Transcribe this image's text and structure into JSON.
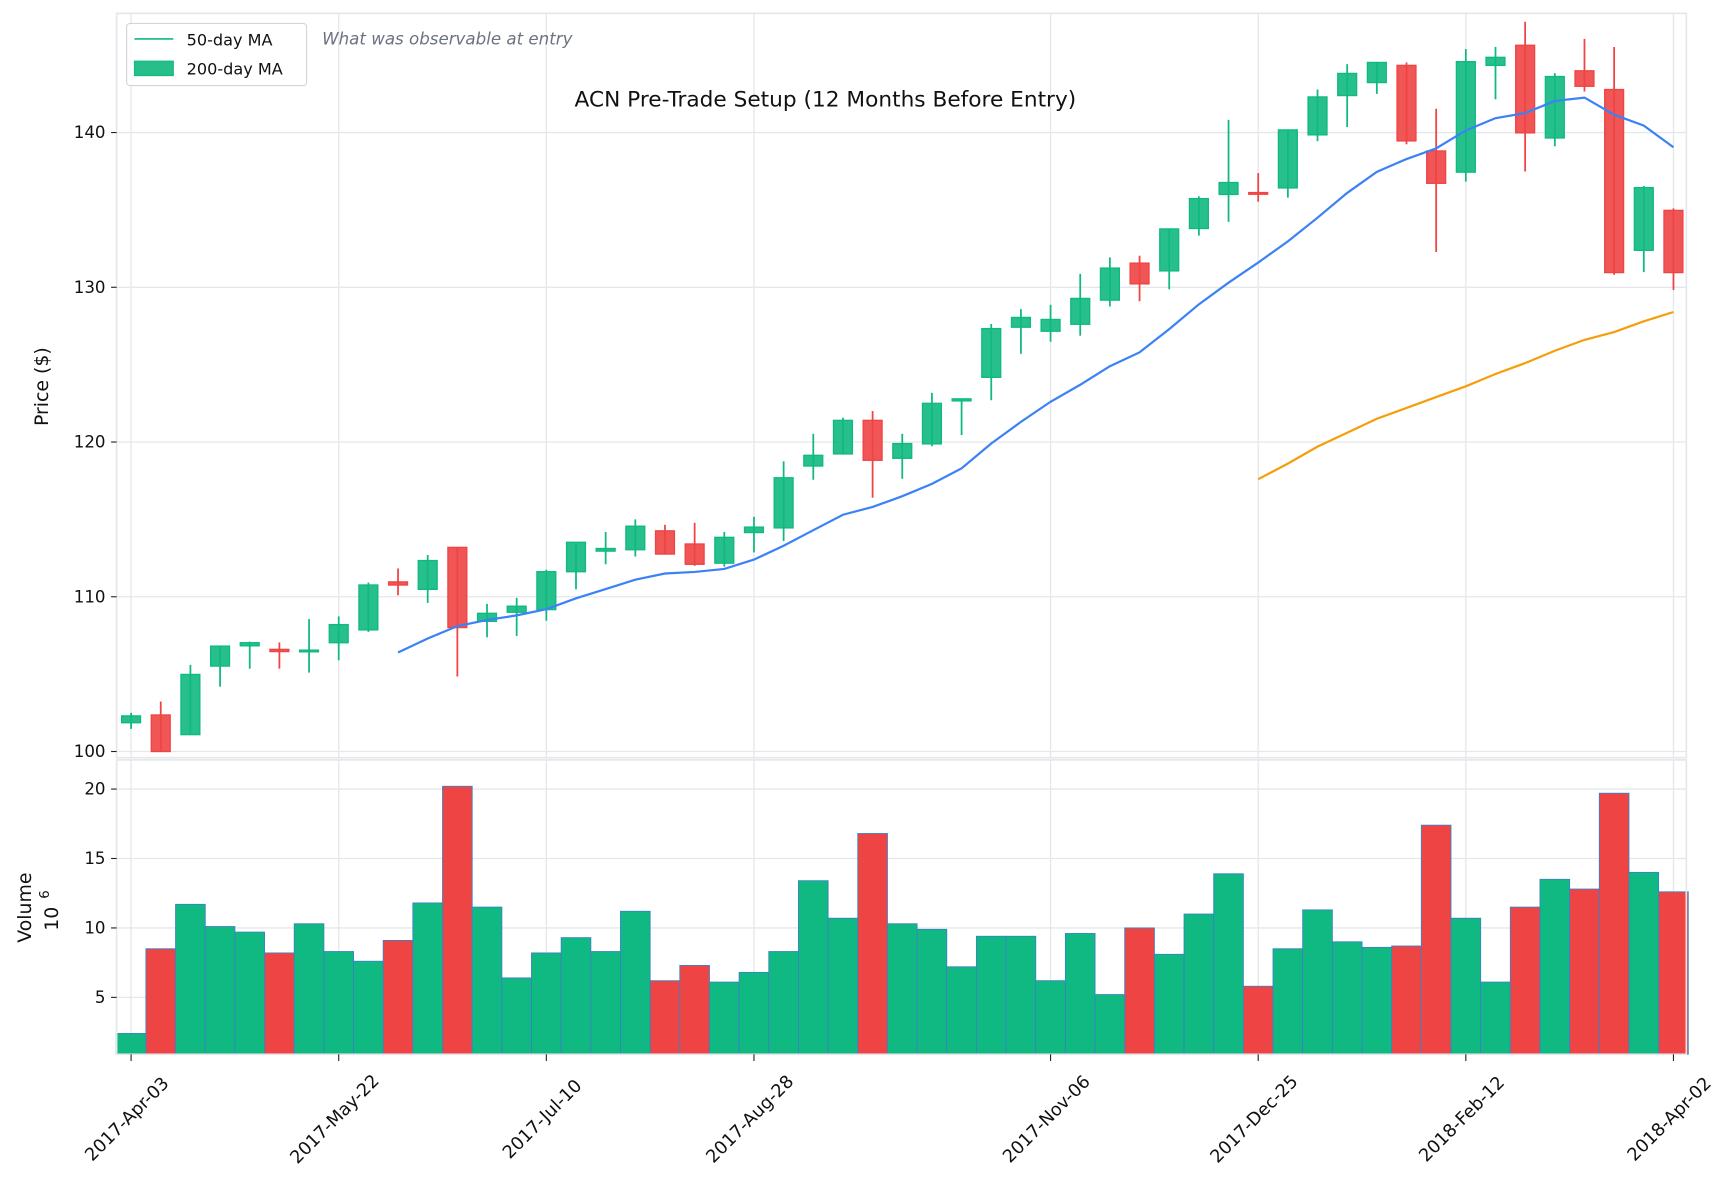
{
  "chart_data": [
    {
      "type": "candlestick",
      "title": "ACN Pre-Trade Setup (12 Months Before Entry)",
      "annotation": "What was observable at entry",
      "ylabel": "Price ($)",
      "ylim": [
        99.6,
        147.7
      ],
      "yticks": [
        100,
        110,
        120,
        130,
        140
      ],
      "grid": true,
      "legend": {
        "placement": "top-left",
        "entries": [
          "50-day MA",
          "200-day MA"
        ]
      },
      "colors": {
        "up": "#10b981",
        "down": "#ef4444",
        "ma50": "#3b82f6",
        "ma200": "#f59e0b",
        "grid": "#e5e7eb"
      },
      "ohlc": [
        [
          101.86,
          102.5,
          101.46,
          102.3
        ],
        [
          102.36,
          103.23,
          100.0,
          100.0
        ],
        [
          101.09,
          105.6,
          101.09,
          104.98
        ],
        [
          105.52,
          106.81,
          104.19,
          106.81
        ],
        [
          106.83,
          107.1,
          105.35,
          107.03
        ],
        [
          106.6,
          107.05,
          105.35,
          106.46
        ],
        [
          106.46,
          108.56,
          105.1,
          106.55
        ],
        [
          107.03,
          108.73,
          105.9,
          108.2
        ],
        [
          107.86,
          110.92,
          107.73,
          110.76
        ],
        [
          110.96,
          111.83,
          110.09,
          110.76
        ],
        [
          110.48,
          112.7,
          109.6,
          112.34
        ],
        [
          113.19,
          113.19,
          104.85,
          108.01
        ],
        [
          108.41,
          109.54,
          107.38,
          108.93
        ],
        [
          109.0,
          109.93,
          107.47,
          109.39
        ],
        [
          109.17,
          111.75,
          108.45,
          111.62
        ],
        [
          111.62,
          113.52,
          110.48,
          113.52
        ],
        [
          112.95,
          114.19,
          112.1,
          113.12
        ],
        [
          113.04,
          115.0,
          112.6,
          114.56
        ],
        [
          114.26,
          114.65,
          112.76,
          112.76
        ],
        [
          113.41,
          114.78,
          112.0,
          112.1
        ],
        [
          112.17,
          114.19,
          111.95,
          113.84
        ],
        [
          114.15,
          115.17,
          112.87,
          114.5
        ],
        [
          114.45,
          118.75,
          113.6,
          117.69
        ],
        [
          118.45,
          120.53,
          117.56,
          119.14
        ],
        [
          119.23,
          121.57,
          119.23,
          121.4
        ],
        [
          121.4,
          122.0,
          116.4,
          118.82
        ],
        [
          118.95,
          120.53,
          117.62,
          119.9
        ],
        [
          119.88,
          123.18,
          119.73,
          122.5
        ],
        [
          122.66,
          122.79,
          120.45,
          122.79
        ],
        [
          124.18,
          127.63,
          122.7,
          127.33
        ],
        [
          127.42,
          128.59,
          125.7,
          128.05
        ],
        [
          127.16,
          128.87,
          126.48,
          127.92
        ],
        [
          127.61,
          130.87,
          126.87,
          129.28
        ],
        [
          129.17,
          131.93,
          128.76,
          131.24
        ],
        [
          131.56,
          132.04,
          129.1,
          130.22
        ],
        [
          131.06,
          133.77,
          129.87,
          133.77
        ],
        [
          133.8,
          135.88,
          133.34,
          135.73
        ],
        [
          136.0,
          140.82,
          134.23,
          136.77
        ],
        [
          136.12,
          137.38,
          135.53,
          136.03
        ],
        [
          136.42,
          140.17,
          135.79,
          140.17
        ],
        [
          139.85,
          142.78,
          139.44,
          142.3
        ],
        [
          142.39,
          144.42,
          140.35,
          143.82
        ],
        [
          143.23,
          144.53,
          142.5,
          144.53
        ],
        [
          144.34,
          144.53,
          139.24,
          139.46
        ],
        [
          138.81,
          141.54,
          132.28,
          136.72
        ],
        [
          137.44,
          145.4,
          136.83,
          144.58
        ],
        [
          144.34,
          145.53,
          142.15,
          144.86
        ],
        [
          145.64,
          147.16,
          137.48,
          139.98
        ],
        [
          139.65,
          143.84,
          139.11,
          143.62
        ],
        [
          143.99,
          146.05,
          142.65,
          142.99
        ],
        [
          142.78,
          145.53,
          130.8,
          130.95
        ],
        [
          132.39,
          136.55,
          130.98,
          136.44
        ],
        [
          134.97,
          135.1,
          129.83,
          130.95
        ]
      ],
      "ma50": [
        null,
        null,
        null,
        null,
        null,
        null,
        null,
        null,
        null,
        106.4,
        107.3,
        108.1,
        108.5,
        108.8,
        109.2,
        109.9,
        110.5,
        111.1,
        111.5,
        111.6,
        111.8,
        112.4,
        113.3,
        114.3,
        115.3,
        115.8,
        116.5,
        117.3,
        118.3,
        119.9,
        121.3,
        122.6,
        123.7,
        124.9,
        125.8,
        127.3,
        128.9,
        130.3,
        131.6,
        132.97,
        134.5,
        136.1,
        137.46,
        138.29,
        138.98,
        140.13,
        140.93,
        141.26,
        142.04,
        142.26,
        141.15,
        140.45,
        139.05
      ],
      "ma200": [
        null,
        null,
        null,
        null,
        null,
        null,
        null,
        null,
        null,
        null,
        null,
        null,
        null,
        null,
        null,
        null,
        null,
        null,
        null,
        null,
        null,
        null,
        null,
        null,
        null,
        null,
        null,
        null,
        null,
        null,
        null,
        null,
        null,
        null,
        null,
        null,
        null,
        null,
        117.6,
        118.6,
        119.7,
        120.6,
        121.5,
        122.2,
        122.9,
        123.6,
        124.4,
        125.1,
        125.9,
        126.6,
        127.1,
        127.8,
        128.4
      ],
      "xticks": [
        {
          "index": 0,
          "label": "2017-Apr-03"
        },
        {
          "index": 7,
          "label": "2017-May-22"
        },
        {
          "index": 14,
          "label": "2017-Jul-10"
        },
        {
          "index": 21,
          "label": "2017-Aug-28"
        },
        {
          "index": 31,
          "label": "2017-Nov-06"
        },
        {
          "index": 38,
          "label": "2017-Dec-25"
        },
        {
          "index": 45,
          "label": "2018-Feb-12"
        },
        {
          "index": 52,
          "label": "2018-Apr-02"
        }
      ]
    },
    {
      "type": "bar",
      "ylabel": "Volume",
      "offset_text": "10",
      "offset_exp": "6",
      "ylim": [
        0.9,
        22.1
      ],
      "yticks": [
        5,
        10,
        15,
        20
      ],
      "grid": true,
      "values": [
        2.4,
        8.5,
        11.7,
        10.1,
        9.7,
        8.2,
        10.3,
        8.3,
        7.6,
        9.1,
        11.8,
        20.2,
        11.5,
        6.4,
        8.2,
        9.3,
        8.3,
        11.2,
        6.2,
        7.3,
        6.1,
        6.8,
        8.3,
        13.4,
        10.7,
        16.8,
        10.3,
        9.9,
        7.2,
        9.4,
        9.4,
        6.2,
        9.6,
        5.2,
        10.0,
        8.1,
        11.0,
        13.9,
        5.8,
        8.5,
        11.3,
        9.0,
        8.6,
        8.7,
        17.4,
        10.7,
        6.1,
        11.5,
        13.5,
        12.8,
        19.7,
        14.0,
        12.6
      ]
    }
  ]
}
